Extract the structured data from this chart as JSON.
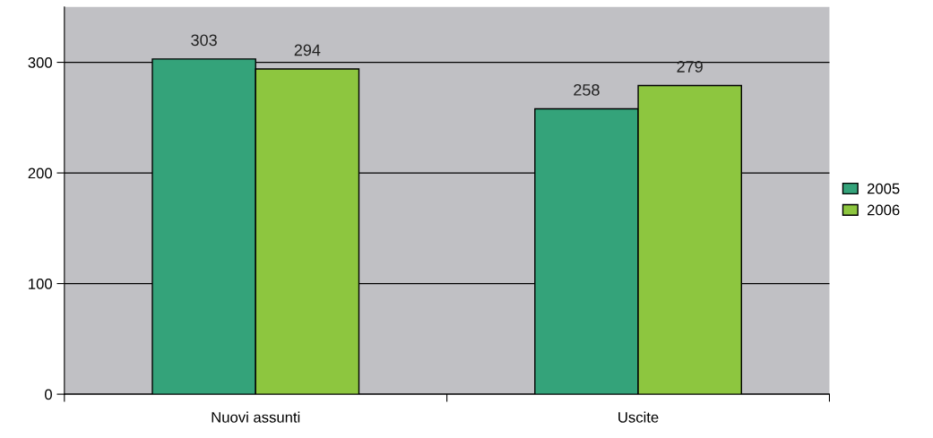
{
  "chart_data": {
    "type": "bar",
    "categories": [
      "Nuovi assunti",
      "Uscite"
    ],
    "series": [
      {
        "name": "2005",
        "color": "#34a37a",
        "values": [
          303,
          258
        ]
      },
      {
        "name": "2006",
        "color": "#8dc63f",
        "values": [
          294,
          279
        ]
      }
    ],
    "ylim": [
      0,
      350
    ],
    "yticks": [
      0,
      100,
      200,
      300
    ],
    "grid": "y",
    "legend": "right",
    "data_labels": true
  }
}
